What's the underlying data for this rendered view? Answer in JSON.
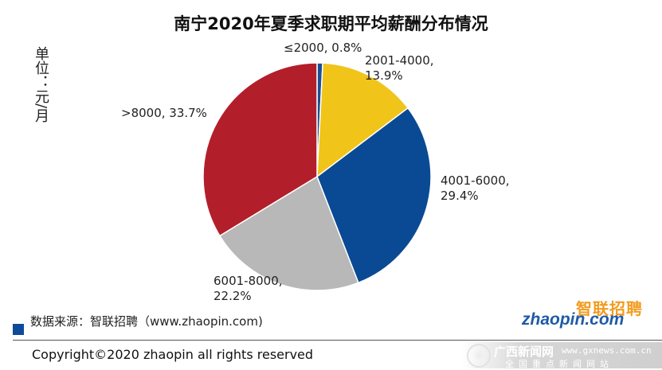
{
  "chart_data": {
    "type": "pie",
    "title": "南宁2020年夏季求职期平均薪酬分布情况",
    "unit_note": "单位：元/月",
    "categories": [
      "≤2000",
      "2001-4000",
      "4001-6000",
      "6001-8000",
      ">8000"
    ],
    "values": [
      0.8,
      13.9,
      29.4,
      22.2,
      33.7
    ],
    "labels": [
      "≤2000, 0.8%",
      "2001-4000,\n13.9%",
      "4001-6000,\n29.4%",
      "6001-8000,\n22.2%",
      ">8000, 33.7%"
    ],
    "colors": [
      "#1a4f96",
      "#f0c419",
      "#0a4a94",
      "#b8b8b8",
      "#b31e2b"
    ]
  },
  "footer": {
    "source": "数据来源：智联招聘（www.zhaopin.com)",
    "copyright": "Copyright©2020 zhaopin all rights reserved"
  },
  "logo": {
    "top": "智联招聘",
    "bottom": "zhaopin.com"
  },
  "watermark": {
    "main": "广西新闻网",
    "url": "www.gxnews.com.cn",
    "sub": "全国重点新闻网站"
  }
}
